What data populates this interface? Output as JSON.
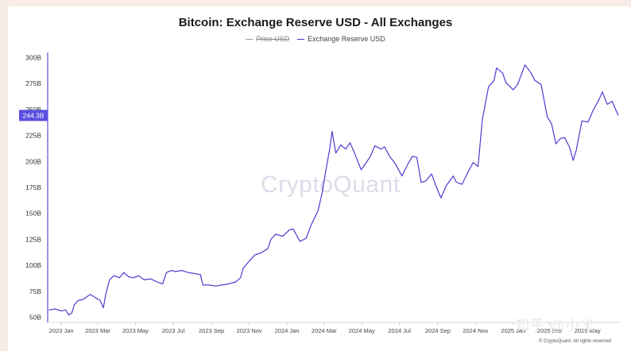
{
  "chart_data": {
    "type": "line",
    "title": "Bitcoin: Exchange Reserve USD - All Exchanges",
    "legend": [
      {
        "name": "Price USD",
        "color": "#9a9a9a",
        "visible": false
      },
      {
        "name": "Exchange Reserve USD",
        "color": "#4a3ccf",
        "visible": true
      }
    ],
    "legend_position": "top-center",
    "y_unit": "B",
    "ylim": [
      45,
      305
    ],
    "y_ticks": [
      {
        "value": 50,
        "label": "50B"
      },
      {
        "value": 75,
        "label": "75B"
      },
      {
        "value": 100,
        "label": "100B"
      },
      {
        "value": 125,
        "label": "125B"
      },
      {
        "value": 150,
        "label": "150B"
      },
      {
        "value": 175,
        "label": "175B"
      },
      {
        "value": 200,
        "label": "200B"
      },
      {
        "value": 225,
        "label": "225B"
      },
      {
        "value": 250,
        "label": "250B"
      },
      {
        "value": 275,
        "label": "275B"
      },
      {
        "value": 300,
        "label": "300B"
      }
    ],
    "xlim": [
      "2022-12-10",
      "2025-06-25"
    ],
    "x_ticks": [
      {
        "date": "2023-01-01",
        "label": "2023 Jan"
      },
      {
        "date": "2023-03-01",
        "label": "2023 Mar"
      },
      {
        "date": "2023-05-01",
        "label": "2023 May"
      },
      {
        "date": "2023-07-01",
        "label": "2023 Jul"
      },
      {
        "date": "2023-09-01",
        "label": "2023 Sep"
      },
      {
        "date": "2023-11-01",
        "label": "2023 Nov"
      },
      {
        "date": "2024-01-01",
        "label": "2024 Jan"
      },
      {
        "date": "2024-03-01",
        "label": "2024 Mar"
      },
      {
        "date": "2024-05-01",
        "label": "2024 May"
      },
      {
        "date": "2024-07-01",
        "label": "2024 Jul"
      },
      {
        "date": "2024-09-01",
        "label": "2024 Sep"
      },
      {
        "date": "2024-11-01",
        "label": "2024 Nov"
      },
      {
        "date": "2025-01-01",
        "label": "2025 Jan"
      },
      {
        "date": "2025-03-01",
        "label": "2025 Mar"
      },
      {
        "date": "2025-05-01",
        "label": "2025 May"
      }
    ],
    "last_value_label": "244.3B",
    "series": [
      {
        "name": "Exchange Reserve USD",
        "color": "#4a3ccf",
        "points": [
          [
            "2022-12-12",
            57
          ],
          [
            "2022-12-22",
            58
          ],
          [
            "2023-01-01",
            56
          ],
          [
            "2023-01-08",
            57
          ],
          [
            "2023-01-13",
            52
          ],
          [
            "2023-01-18",
            54
          ],
          [
            "2023-01-22",
            62
          ],
          [
            "2023-01-28",
            66
          ],
          [
            "2023-02-05",
            67
          ],
          [
            "2023-02-12",
            70
          ],
          [
            "2023-02-17",
            72
          ],
          [
            "2023-02-25",
            69
          ],
          [
            "2023-03-05",
            66
          ],
          [
            "2023-03-10",
            59
          ],
          [
            "2023-03-14",
            72
          ],
          [
            "2023-03-20",
            86
          ],
          [
            "2023-03-27",
            90
          ],
          [
            "2023-04-05",
            88
          ],
          [
            "2023-04-12",
            93
          ],
          [
            "2023-04-20",
            89
          ],
          [
            "2023-04-28",
            88
          ],
          [
            "2023-05-06",
            90
          ],
          [
            "2023-05-15",
            86
          ],
          [
            "2023-05-25",
            87
          ],
          [
            "2023-06-05",
            84
          ],
          [
            "2023-06-14",
            82
          ],
          [
            "2023-06-20",
            93
          ],
          [
            "2023-06-28",
            95
          ],
          [
            "2023-07-05",
            94
          ],
          [
            "2023-07-15",
            95
          ],
          [
            "2023-07-25",
            93
          ],
          [
            "2023-08-05",
            92
          ],
          [
            "2023-08-14",
            91
          ],
          [
            "2023-08-18",
            81
          ],
          [
            "2023-08-28",
            81
          ],
          [
            "2023-09-08",
            80
          ],
          [
            "2023-09-18",
            81
          ],
          [
            "2023-09-28",
            82
          ],
          [
            "2023-10-10",
            84
          ],
          [
            "2023-10-18",
            88
          ],
          [
            "2023-10-22",
            97
          ],
          [
            "2023-11-01",
            104
          ],
          [
            "2023-11-10",
            110
          ],
          [
            "2023-11-20",
            112
          ],
          [
            "2023-12-01",
            116
          ],
          [
            "2023-12-06",
            125
          ],
          [
            "2023-12-14",
            130
          ],
          [
            "2023-12-25",
            128
          ],
          [
            "2024-01-05",
            134
          ],
          [
            "2024-01-11",
            135
          ],
          [
            "2024-01-22",
            123
          ],
          [
            "2024-02-01",
            126
          ],
          [
            "2024-02-10",
            140
          ],
          [
            "2024-02-20",
            152
          ],
          [
            "2024-02-27",
            170
          ],
          [
            "2024-03-05",
            195
          ],
          [
            "2024-03-10",
            212
          ],
          [
            "2024-03-14",
            229
          ],
          [
            "2024-03-20",
            208
          ],
          [
            "2024-03-28",
            216
          ],
          [
            "2024-04-05",
            212
          ],
          [
            "2024-04-12",
            218
          ],
          [
            "2024-04-20",
            207
          ],
          [
            "2024-04-30",
            192
          ],
          [
            "2024-05-05",
            196
          ],
          [
            "2024-05-15",
            205
          ],
          [
            "2024-05-22",
            215
          ],
          [
            "2024-06-01",
            212
          ],
          [
            "2024-06-07",
            214
          ],
          [
            "2024-06-15",
            205
          ],
          [
            "2024-06-24",
            198
          ],
          [
            "2024-07-05",
            186
          ],
          [
            "2024-07-15",
            198
          ],
          [
            "2024-07-22",
            205
          ],
          [
            "2024-07-29",
            204
          ],
          [
            "2024-08-05",
            180
          ],
          [
            "2024-08-12",
            181
          ],
          [
            "2024-08-22",
            188
          ],
          [
            "2024-08-28",
            178
          ],
          [
            "2024-09-06",
            165
          ],
          [
            "2024-09-15",
            177
          ],
          [
            "2024-09-26",
            186
          ],
          [
            "2024-10-01",
            180
          ],
          [
            "2024-10-10",
            178
          ],
          [
            "2024-10-20",
            190
          ],
          [
            "2024-10-28",
            199
          ],
          [
            "2024-11-05",
            195
          ],
          [
            "2024-11-12",
            240
          ],
          [
            "2024-11-22",
            272
          ],
          [
            "2024-12-01",
            278
          ],
          [
            "2024-12-05",
            290
          ],
          [
            "2024-12-15",
            285
          ],
          [
            "2024-12-20",
            276
          ],
          [
            "2025-01-01",
            269
          ],
          [
            "2025-01-08",
            274
          ],
          [
            "2025-01-20",
            293
          ],
          [
            "2025-01-30",
            285
          ],
          [
            "2025-02-05",
            278
          ],
          [
            "2025-02-15",
            274
          ],
          [
            "2025-02-25",
            243
          ],
          [
            "2025-03-04",
            236
          ],
          [
            "2025-03-11",
            217
          ],
          [
            "2025-03-18",
            222
          ],
          [
            "2025-03-25",
            223
          ],
          [
            "2025-04-02",
            214
          ],
          [
            "2025-04-08",
            201
          ],
          [
            "2025-04-13",
            211
          ],
          [
            "2025-04-22",
            239
          ],
          [
            "2025-05-02",
            238
          ],
          [
            "2025-05-10",
            249
          ],
          [
            "2025-05-20",
            260
          ],
          [
            "2025-05-25",
            267
          ],
          [
            "2025-06-02",
            255
          ],
          [
            "2025-06-10",
            258
          ],
          [
            "2025-06-17",
            248
          ],
          [
            "2025-06-20",
            244.3
          ]
        ]
      }
    ]
  },
  "watermark": "CryptoQuant",
  "corner_mark": "知乎 @小义",
  "copyright": "© CryptoQuant. All rights reserved"
}
